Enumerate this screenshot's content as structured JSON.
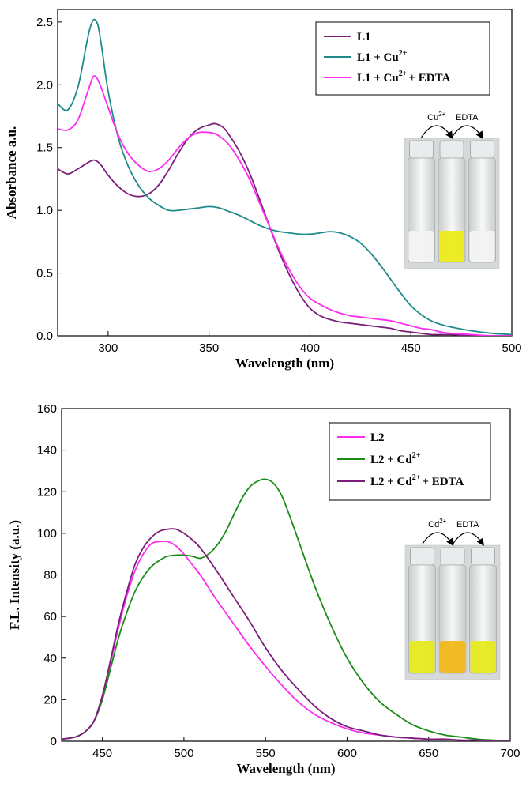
{
  "chart_data": [
    {
      "type": "line",
      "title": "",
      "xlabel": "Wavelength (nm)",
      "ylabel": "Absorbance a.u.",
      "xlim": [
        275,
        500
      ],
      "ylim": [
        0,
        2.6
      ],
      "x_ticks": [
        300,
        350,
        400,
        450,
        500
      ],
      "x_tick_labels": [
        "300",
        "350",
        "400",
        "450",
        "500"
      ],
      "y_ticks": [
        0,
        0.5,
        1.0,
        1.5,
        2.0,
        2.5
      ],
      "y_tick_labels": [
        "0.0",
        "0.5",
        "1.0",
        "1.5",
        "2.0",
        "2.5"
      ],
      "legend_position": "top-right",
      "series": [
        {
          "name": "L1",
          "legend_main": "L1",
          "legend_sup": "",
          "legend_tail": "",
          "color": "#7b1e7a",
          "x": [
            275,
            280,
            285,
            290,
            293,
            296,
            300,
            305,
            310,
            315,
            320,
            325,
            330,
            335,
            340,
            345,
            350,
            353,
            357,
            360,
            365,
            370,
            375,
            380,
            385,
            390,
            395,
            400,
            405,
            410,
            415,
            420,
            425,
            430,
            435,
            440,
            445,
            450,
            455,
            460,
            465,
            470,
            480,
            490,
            500
          ],
          "y": [
            1.33,
            1.29,
            1.33,
            1.38,
            1.4,
            1.37,
            1.28,
            1.19,
            1.13,
            1.11,
            1.13,
            1.2,
            1.32,
            1.46,
            1.58,
            1.65,
            1.68,
            1.69,
            1.66,
            1.6,
            1.47,
            1.3,
            1.09,
            0.87,
            0.66,
            0.48,
            0.33,
            0.22,
            0.16,
            0.13,
            0.11,
            0.1,
            0.09,
            0.08,
            0.07,
            0.06,
            0.04,
            0.03,
            0.02,
            0.01,
            0.01,
            0.01,
            0.0,
            0.0,
            0.0
          ]
        },
        {
          "name": "L1 + Cu2+",
          "legend_main": "L1 + Cu",
          "legend_sup": "2+",
          "legend_tail": "",
          "color": "#1f8a8a",
          "x": [
            275,
            280,
            285,
            289,
            291,
            293,
            295,
            297,
            300,
            305,
            310,
            315,
            320,
            325,
            330,
            335,
            340,
            345,
            350,
            355,
            360,
            365,
            370,
            375,
            380,
            385,
            390,
            395,
            400,
            405,
            410,
            415,
            420,
            425,
            430,
            435,
            440,
            445,
            450,
            455,
            460,
            465,
            470,
            480,
            490,
            500
          ],
          "y": [
            1.85,
            1.8,
            1.98,
            2.3,
            2.45,
            2.52,
            2.47,
            2.28,
            1.95,
            1.58,
            1.35,
            1.2,
            1.1,
            1.04,
            1.0,
            1.0,
            1.01,
            1.02,
            1.03,
            1.02,
            0.99,
            0.96,
            0.92,
            0.88,
            0.85,
            0.83,
            0.82,
            0.81,
            0.81,
            0.82,
            0.83,
            0.82,
            0.79,
            0.74,
            0.66,
            0.56,
            0.45,
            0.34,
            0.24,
            0.17,
            0.12,
            0.09,
            0.07,
            0.04,
            0.02,
            0.01
          ]
        },
        {
          "name": "L1 + Cu2+ + EDTA",
          "legend_main": "L1 + Cu",
          "legend_sup": "2+",
          "legend_tail": "+ EDTA",
          "color": "#ff2bf0",
          "x": [
            275,
            280,
            285,
            290,
            293,
            296,
            300,
            305,
            310,
            315,
            320,
            325,
            330,
            335,
            340,
            345,
            350,
            353,
            356,
            360,
            365,
            370,
            375,
            380,
            385,
            390,
            395,
            400,
            405,
            410,
            415,
            420,
            425,
            430,
            435,
            440,
            445,
            450,
            455,
            460,
            465,
            470,
            480,
            490,
            500
          ],
          "y": [
            1.65,
            1.64,
            1.72,
            1.95,
            2.07,
            2.0,
            1.82,
            1.6,
            1.45,
            1.36,
            1.31,
            1.33,
            1.4,
            1.5,
            1.58,
            1.62,
            1.62,
            1.61,
            1.58,
            1.52,
            1.4,
            1.25,
            1.06,
            0.87,
            0.68,
            0.52,
            0.39,
            0.3,
            0.25,
            0.21,
            0.18,
            0.16,
            0.15,
            0.14,
            0.13,
            0.12,
            0.1,
            0.08,
            0.06,
            0.05,
            0.03,
            0.02,
            0.01,
            0.0,
            0.0
          ]
        }
      ],
      "inset": {
        "arrow_labels": [
          "Cu2+",
          "EDTA"
        ],
        "arrow_label_main": [
          "Cu",
          "EDTA"
        ],
        "arrow_label_sup": [
          "2+",
          ""
        ],
        "vial_colors": [
          "#f2f3f2",
          "#ecec1a",
          "#f2f3f2"
        ]
      }
    },
    {
      "type": "line",
      "title": "",
      "xlabel": "Wavelength (nm)",
      "ylabel": "F.L. Intensity (a.u.)",
      "xlim": [
        425,
        700
      ],
      "ylim": [
        0,
        160
      ],
      "x_ticks": [
        450,
        500,
        550,
        600,
        650,
        700
      ],
      "x_tick_labels": [
        "450",
        "500",
        "550",
        "600",
        "650",
        "700"
      ],
      "y_ticks": [
        0,
        20,
        40,
        60,
        80,
        100,
        120,
        140,
        160
      ],
      "y_tick_labels": [
        "0",
        "20",
        "40",
        "60",
        "80",
        "100",
        "120",
        "140",
        "160"
      ],
      "legend_position": "top-right",
      "series": [
        {
          "name": "L2",
          "legend_main": "L2",
          "legend_sup": "",
          "legend_tail": "",
          "color": "#ff2bf0",
          "x": [
            425,
            430,
            435,
            440,
            445,
            450,
            455,
            460,
            465,
            470,
            475,
            480,
            485,
            490,
            495,
            500,
            505,
            510,
            520,
            530,
            540,
            550,
            560,
            570,
            580,
            590,
            600,
            610,
            620,
            630,
            640,
            650,
            660,
            670,
            680,
            690,
            700
          ],
          "y": [
            1,
            1.5,
            2.5,
            5,
            10,
            22,
            38,
            55,
            70,
            82,
            90,
            95,
            96,
            96,
            94,
            90,
            85,
            80,
            68,
            57,
            46,
            36,
            27,
            19,
            13,
            9,
            6,
            4,
            3,
            2,
            1.5,
            1,
            1,
            0.5,
            0.5,
            0,
            0
          ]
        },
        {
          "name": "L2 + Cd2+",
          "legend_main": "L2 + Cd",
          "legend_sup": "2+",
          "legend_tail": "",
          "color": "#198c19",
          "x": [
            425,
            430,
            435,
            440,
            445,
            450,
            455,
            460,
            465,
            470,
            475,
            480,
            485,
            490,
            495,
            500,
            505,
            510,
            515,
            520,
            525,
            530,
            535,
            540,
            545,
            550,
            555,
            560,
            565,
            570,
            580,
            590,
            600,
            610,
            620,
            630,
            640,
            650,
            660,
            670,
            680,
            690,
            700
          ],
          "y": [
            1,
            1.5,
            2.5,
            5,
            10,
            20,
            35,
            50,
            62,
            72,
            79,
            84,
            87,
            89,
            89.5,
            89.5,
            89,
            88,
            90,
            94,
            100,
            108,
            116,
            122,
            125,
            126,
            124,
            118,
            108,
            97,
            75,
            56,
            40,
            28,
            19,
            13,
            8,
            5,
            3,
            2,
            1,
            0.5,
            0
          ]
        },
        {
          "name": "L2 + Cd2+ + EDTA",
          "legend_main": "L2 + Cd",
          "legend_sup": "2+",
          "legend_tail": "+ EDTA",
          "color": "#7b1e7a",
          "x": [
            425,
            430,
            435,
            440,
            445,
            450,
            455,
            460,
            465,
            470,
            475,
            480,
            485,
            490,
            495,
            500,
            505,
            510,
            520,
            530,
            540,
            550,
            560,
            570,
            580,
            590,
            600,
            610,
            620,
            630,
            640,
            650,
            660,
            670,
            680,
            690,
            700
          ],
          "y": [
            1,
            1.5,
            2.5,
            5,
            10,
            22,
            39,
            57,
            72,
            85,
            93,
            98,
            101,
            102,
            102,
            100,
            97,
            93,
            82,
            70,
            58,
            45,
            34,
            25,
            17,
            11,
            7,
            5,
            3,
            2,
            1.5,
            1,
            1,
            0.5,
            0.5,
            0,
            0
          ]
        }
      ],
      "inset": {
        "arrow_labels": [
          "Cd2+",
          "EDTA"
        ],
        "arrow_label_main": [
          "Cd",
          "EDTA"
        ],
        "arrow_label_sup": [
          "2+",
          ""
        ],
        "vial_colors": [
          "#e6ea1e",
          "#f2b81a",
          "#e6ea1e"
        ]
      }
    }
  ]
}
